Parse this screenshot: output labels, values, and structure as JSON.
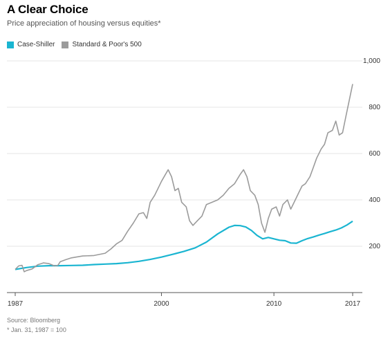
{
  "title": "A Clear Choice",
  "subtitle": "Price appreciation of housing versus equities*",
  "source": "Source: Bloomberg",
  "footnote": "* Jan. 31, 1987 = 100",
  "colors": {
    "case_shiller": "#1ab5d1",
    "sp500": "#9b9b9b",
    "grid": "#e6e6e6",
    "axis": "#555555"
  },
  "chart_data": {
    "type": "line",
    "title": "A Clear Choice",
    "subtitle": "Price appreciation of housing versus equities*",
    "xlabel": "",
    "ylabel": "",
    "xlim": [
      1987,
      2017
    ],
    "ylim": [
      0,
      1000
    ],
    "x_ticks": [
      1987,
      2000,
      2010,
      2017
    ],
    "y_ticks": [
      200,
      400,
      600,
      800,
      1000
    ],
    "y_tick_labels": [
      "200",
      "400",
      "600",
      "800",
      "1,000"
    ],
    "grid": true,
    "legend": "top-left",
    "series": [
      {
        "name": "Case-Shiller",
        "color": "#1ab5d1",
        "x": [
          1987,
          1988,
          1989,
          1990,
          1991,
          1992,
          1993,
          1994,
          1995,
          1996,
          1997,
          1998,
          1999,
          2000,
          2001,
          2002,
          2003,
          2004,
          2005,
          2006,
          2006.5,
          2007,
          2007.5,
          2008,
          2008.5,
          2009,
          2009.5,
          2010,
          2010.5,
          2011,
          2011.5,
          2012,
          2012.5,
          2013,
          2013.5,
          2014,
          2014.5,
          2015,
          2015.5,
          2016,
          2016.5,
          2017
        ],
        "y": [
          100,
          108,
          114,
          116,
          116,
          117,
          118,
          121,
          123,
          125,
          129,
          135,
          143,
          153,
          165,
          178,
          193,
          218,
          253,
          282,
          290,
          289,
          283,
          268,
          247,
          232,
          238,
          232,
          226,
          224,
          214,
          213,
          224,
          233,
          240,
          248,
          255,
          263,
          270,
          279,
          292,
          308
        ]
      },
      {
        "name": "Standard & Poor's 500",
        "color": "#9b9b9b",
        "x": [
          1987,
          1987.3,
          1987.6,
          1987.8,
          1988,
          1988.5,
          1989,
          1989.5,
          1990,
          1990.5,
          1990.8,
          1991,
          1991.5,
          1992,
          1993,
          1994,
          1995,
          1995.5,
          1996,
          1996.5,
          1997,
          1997.5,
          1998,
          1998.4,
          1998.7,
          1999,
          1999.4,
          1999.7,
          2000,
          2000.3,
          2000.6,
          2000.9,
          2001.2,
          2001.5,
          2001.8,
          2002.2,
          2002.5,
          2002.8,
          2003.2,
          2003.6,
          2004,
          2004.5,
          2005,
          2005.5,
          2006,
          2006.5,
          2007,
          2007.3,
          2007.6,
          2007.9,
          2008.3,
          2008.6,
          2008.9,
          2009.2,
          2009.5,
          2009.8,
          2010.2,
          2010.5,
          2010.8,
          2011.2,
          2011.5,
          2011.8,
          2012.2,
          2012.5,
          2012.8,
          2013.2,
          2013.5,
          2013.8,
          2014.2,
          2014.5,
          2014.8,
          2015.2,
          2015.5,
          2015.8,
          2016.1,
          2016.4,
          2016.7,
          2017
        ],
        "y": [
          100,
          115,
          118,
          90,
          95,
          102,
          120,
          128,
          125,
          115,
          118,
          133,
          142,
          150,
          158,
          160,
          170,
          188,
          210,
          225,
          265,
          300,
          340,
          345,
          320,
          390,
          420,
          450,
          480,
          505,
          530,
          500,
          440,
          450,
          390,
          370,
          310,
          290,
          310,
          330,
          380,
          390,
          400,
          420,
          450,
          470,
          510,
          530,
          500,
          440,
          420,
          380,
          300,
          260,
          320,
          360,
          370,
          330,
          380,
          400,
          360,
          390,
          430,
          460,
          470,
          500,
          540,
          580,
          620,
          640,
          690,
          700,
          740,
          680,
          690,
          760,
          830,
          900
        ]
      }
    ]
  }
}
